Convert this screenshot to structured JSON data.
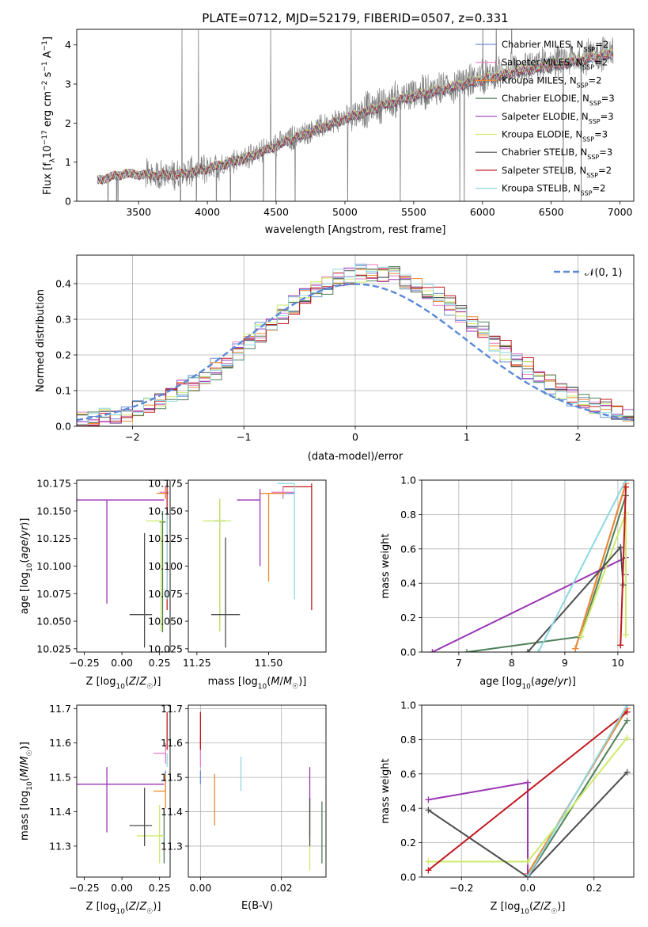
{
  "figure": {
    "title": "PLATE=0712, MJD=52179, FIBERID=0507, z=0.331"
  },
  "models": [
    {
      "name": "Chabrier MILES, N$_{SSP}$=2",
      "label": "Chabrier MILES, N",
      "sub": "SSP",
      "suffix": "=2",
      "color": "#6a8fd6"
    },
    {
      "name": "Salpeter MILES, N$_{SSP}$=2",
      "label": "Salpeter MILES, N",
      "sub": "SSP",
      "suffix": "=2",
      "color": "#e67fc2"
    },
    {
      "name": "Kroupa MILES, N$_{SSP}$=2",
      "label": "Kroupa MILES, N",
      "sub": "SSP",
      "suffix": "=2",
      "color": "#ee8a2e"
    },
    {
      "name": "Chabrier ELODIE, N$_{SSP}$=3",
      "label": "Chabrier ELODIE, N",
      "sub": "SSP",
      "suffix": "=3",
      "color": "#4f7f5a"
    },
    {
      "name": "Salpeter ELODIE, N$_{SSP}$=3",
      "label": "Salpeter ELODIE, N",
      "sub": "SSP",
      "suffix": "=3",
      "color": "#9b35b5"
    },
    {
      "name": "Kroupa ELODIE, N$_{SSP}$=3",
      "label": "Kroupa ELODIE, N",
      "sub": "SSP",
      "suffix": "=3",
      "color": "#cdea6a"
    },
    {
      "name": "Chabrier STELIB, N$_{SSP}$=3",
      "label": "Chabrier STELIB, N",
      "sub": "SSP",
      "suffix": "=3",
      "color": "#4d4d4d"
    },
    {
      "name": "Salpeter STELIB, N$_{SSP}$=2",
      "label": "Salpeter STELIB, N",
      "sub": "SSP",
      "suffix": "=2",
      "color": "#c0191f"
    },
    {
      "name": "Kroupa STELIB, N$_{SSP}$=2",
      "label": "Kroupa STELIB, N",
      "sub": "SSP",
      "suffix": "=2",
      "color": "#8dd8e0"
    }
  ],
  "chart_data": [
    {
      "id": "spectrum",
      "type": "line",
      "xlabel": "wavelength [Angstrom, rest frame]",
      "ylabel": "Flux [f$_\\lambda$10$^{-17}$ erg cm$^{-2}$ s$^{-1}$ A$^{-1}$]",
      "xlim": [
        3050,
        7100
      ],
      "ylim": [
        0,
        4.4
      ],
      "xticks": [
        3500,
        4000,
        4500,
        5000,
        5500,
        6000,
        6500,
        7000
      ],
      "yticks": [
        0,
        1,
        2,
        3,
        4
      ],
      "grid": false,
      "legend_position": "upper right",
      "data_color": "#808080",
      "continuum_x": [
        3200,
        3400,
        3600,
        3800,
        4000,
        4300,
        4600,
        5000,
        5400,
        5800,
        6200,
        6600,
        6950
      ],
      "continuum_y": [
        0.55,
        0.72,
        0.68,
        0.7,
        0.85,
        1.15,
        1.6,
        2.15,
        2.65,
        3.0,
        3.35,
        3.6,
        3.85
      ]
    },
    {
      "id": "residuals",
      "type": "step",
      "xlabel": "(data-model)/error",
      "ylabel": "Normed distribution",
      "xlim": [
        -2.5,
        2.5
      ],
      "ylim": [
        0,
        0.48
      ],
      "xticks": [
        -2,
        -1,
        0,
        1,
        2
      ],
      "yticks": [
        0,
        0.1,
        0.2,
        0.3,
        0.4
      ],
      "grid": true,
      "legend_position": "upper right",
      "normal_label": "$\\mathcal{N}(0,1)$",
      "normal_label_text": "𝒩(0, 1)",
      "normal_color": "#5a88d8",
      "bin_width": 0.1
    },
    {
      "id": "age_vs_Z",
      "type": "errorbar",
      "xlabel": "Z [log$_{10}$(Z/Z$_\\odot$)]",
      "ylabel": "age  [log$_{10}$(age/yr)]",
      "xlim": [
        -0.3,
        0.32
      ],
      "ylim": [
        10.022,
        10.178
      ],
      "xticks": [
        -0.25,
        0.0,
        0.25
      ],
      "yticks": [
        10.025,
        10.05,
        10.075,
        10.1,
        10.125,
        10.15,
        10.175
      ],
      "grid": false,
      "points": [
        {
          "series": 0,
          "x": 0.29,
          "y": 10.166,
          "xerr": [
            0.02,
            0.02
          ],
          "yerr": [
            0.005,
            0.005
          ]
        },
        {
          "series": 1,
          "x": 0.29,
          "y": 10.167,
          "xerr": [
            0.04,
            0.02
          ],
          "yerr": [
            0.005,
            0.005
          ]
        },
        {
          "series": 2,
          "x": 0.29,
          "y": 10.166,
          "xerr": [
            0.06,
            0.0
          ],
          "yerr": [
            0.005,
            0.005
          ]
        },
        {
          "series": 3,
          "x": 0.27,
          "y": 10.14,
          "xerr": [
            0.02,
            0.02
          ],
          "yerr": [
            0.1,
            0.01
          ]
        },
        {
          "series": 4,
          "x": -0.1,
          "y": 10.16,
          "xerr": [
            0.2,
            0.38
          ],
          "yerr": [
            0.094,
            0.0
          ]
        },
        {
          "series": 5,
          "x": 0.26,
          "y": 10.141,
          "xerr": [
            0.1,
            0.02
          ],
          "yerr": [
            0.1,
            0.0
          ]
        },
        {
          "series": 6,
          "x": 0.15,
          "y": 10.056,
          "xerr": [
            0.1,
            0.05
          ],
          "yerr": [
            0.03,
            0.074
          ]
        },
        {
          "series": 7,
          "x": 0.3,
          "y": 10.172,
          "xerr": [
            0.0,
            0.0
          ],
          "yerr": [
            0.112,
            0.003
          ]
        },
        {
          "series": 8,
          "x": 0.3,
          "y": 10.11,
          "xerr": [
            0.0,
            0.0
          ],
          "yerr": [
            0.04,
            0.04
          ]
        }
      ]
    },
    {
      "id": "age_vs_mass",
      "type": "errorbar",
      "xlabel": "mass [log$_{10}$(M/M$_\\odot$)]",
      "ylabel": "",
      "xlim": [
        11.22,
        11.7
      ],
      "ylim": [
        10.022,
        10.178
      ],
      "xticks": [
        11.25,
        11.5
      ],
      "yticks": [
        10.025,
        10.05,
        10.075,
        10.1,
        10.125,
        10.15,
        10.175
      ],
      "grid": false,
      "points": [
        {
          "series": 0,
          "x": 11.55,
          "y": 10.166,
          "xerr": [
            0.04,
            0.04
          ],
          "yerr": [
            0.005,
            0.005
          ]
        },
        {
          "series": 1,
          "x": 11.55,
          "y": 10.167,
          "xerr": [
            0.04,
            0.04
          ],
          "yerr": [
            0.005,
            0.005
          ]
        },
        {
          "series": 2,
          "x": 11.5,
          "y": 10.166,
          "xerr": [
            0.03,
            0.06
          ],
          "yerr": [
            0.08,
            0.0
          ]
        },
        {
          "series": 3,
          "x": 11.33,
          "y": 10.141,
          "xerr": [
            0.02,
            0.02
          ],
          "yerr": [
            0.1,
            0.02
          ]
        },
        {
          "series": 4,
          "x": 11.47,
          "y": 10.16,
          "xerr": [
            0.08,
            0.0
          ],
          "yerr": [
            0.06,
            0.01
          ]
        },
        {
          "series": 5,
          "x": 11.33,
          "y": 10.141,
          "xerr": [
            0.06,
            0.04
          ],
          "yerr": [
            0.1,
            0.02
          ]
        },
        {
          "series": 6,
          "x": 11.35,
          "y": 10.056,
          "xerr": [
            0.05,
            0.05
          ],
          "yerr": [
            0.03,
            0.07
          ]
        },
        {
          "series": 7,
          "x": 11.65,
          "y": 10.172,
          "xerr": [
            0.1,
            0.0
          ],
          "yerr": [
            0.112,
            0.003
          ]
        },
        {
          "series": 8,
          "x": 11.59,
          "y": 10.175,
          "xerr": [
            0.06,
            0.0
          ],
          "yerr": [
            0.105,
            0.0
          ]
        }
      ]
    },
    {
      "id": "massweight_vs_age",
      "type": "line",
      "xlabel": "age  [log$_{10}$(age/yr)]",
      "ylabel": "mass weight",
      "xlim": [
        6.3,
        10.3
      ],
      "ylim": [
        0,
        1.0
      ],
      "xticks": [
        7,
        8,
        9,
        10
      ],
      "yticks": [
        0.0,
        0.2,
        0.4,
        0.6,
        0.8,
        1.0
      ],
      "grid": true,
      "series": [
        {
          "series": 0,
          "x": [
            9.2,
            10.15
          ],
          "y": [
            0.02,
            0.98
          ]
        },
        {
          "series": 1,
          "x": [
            9.2,
            10.15
          ],
          "y": [
            0.02,
            0.98
          ]
        },
        {
          "series": 2,
          "x": [
            9.2,
            10.15
          ],
          "y": [
            0.02,
            0.98
          ]
        },
        {
          "series": 3,
          "x": [
            7.15,
            9.3,
            10.15
          ],
          "y": [
            0.0,
            0.09,
            0.91
          ]
        },
        {
          "series": 4,
          "x": [
            6.5,
            10.15,
            10.15
          ],
          "y": [
            0.0,
            0.55,
            0.45
          ]
        },
        {
          "series": 5,
          "x": [
            9.3,
            10.15,
            10.15
          ],
          "y": [
            0.09,
            0.81,
            0.1
          ]
        },
        {
          "series": 6,
          "x": [
            8.3,
            10.05,
            10.1
          ],
          "y": [
            0.0,
            0.61,
            0.39
          ]
        },
        {
          "series": 7,
          "x": [
            10.05,
            10.15
          ],
          "y": [
            0.04,
            0.96
          ]
        },
        {
          "series": 8,
          "x": [
            8.5,
            10.15
          ],
          "y": [
            0.0,
            1.0
          ]
        }
      ]
    },
    {
      "id": "mass_vs_Z",
      "type": "errorbar",
      "xlabel": "Z [log$_{10}$(Z/Z$_\\odot$)]",
      "ylabel": "mass [log$_{10}$(M/M$_\\odot$)]",
      "xlim": [
        -0.3,
        0.32
      ],
      "ylim": [
        11.21,
        11.71
      ],
      "xticks": [
        -0.25,
        0.0,
        0.25
      ],
      "yticks": [
        11.3,
        11.4,
        11.5,
        11.6,
        11.7
      ],
      "grid": false,
      "points": [
        {
          "series": 0,
          "x": 0.29,
          "y": 11.49,
          "xerr": [
            0.03,
            0.0
          ],
          "yerr": [
            0.03,
            0.03
          ]
        },
        {
          "series": 1,
          "x": 0.29,
          "y": 11.57,
          "xerr": [
            0.08,
            0.0
          ],
          "yerr": [
            0.03,
            0.03
          ]
        },
        {
          "series": 2,
          "x": 0.29,
          "y": 11.46,
          "xerr": [
            0.08,
            0.0
          ],
          "yerr": [
            0.05,
            0.05
          ]
        },
        {
          "series": 3,
          "x": 0.28,
          "y": 11.33,
          "xerr": [
            0.02,
            0.0
          ],
          "yerr": [
            0.08,
            0.06
          ]
        },
        {
          "series": 4,
          "x": -0.1,
          "y": 11.48,
          "xerr": [
            0.2,
            0.38
          ],
          "yerr": [
            0.14,
            0.05
          ]
        },
        {
          "series": 5,
          "x": 0.25,
          "y": 11.33,
          "xerr": [
            0.15,
            0.03
          ],
          "yerr": [
            0.08,
            0.09
          ]
        },
        {
          "series": 6,
          "x": 0.15,
          "y": 11.36,
          "xerr": [
            0.1,
            0.05
          ],
          "yerr": [
            0.06,
            0.11
          ]
        },
        {
          "series": 7,
          "x": 0.3,
          "y": 11.63,
          "xerr": [
            0.0,
            0.0
          ],
          "yerr": [
            0.05,
            0.06
          ]
        },
        {
          "series": 8,
          "x": 0.3,
          "y": 11.55,
          "xerr": [
            0.0,
            0.0
          ],
          "yerr": [
            0.02,
            0.02
          ]
        }
      ]
    },
    {
      "id": "mass_vs_ebv",
      "type": "errorbar",
      "xlabel": "E(B-V)",
      "ylabel": "",
      "xlim": [
        -0.003,
        0.031
      ],
      "ylim": [
        11.21,
        11.71
      ],
      "xticks": [
        0.0,
        0.02
      ],
      "yticks": [
        11.3,
        11.4,
        11.5,
        11.6,
        11.7
      ],
      "grid": true,
      "points": [
        {
          "series": 0,
          "x": 0.0,
          "y": 11.5,
          "xerr": [
            0,
            0
          ],
          "yerr": [
            0.02,
            0.02
          ]
        },
        {
          "series": 1,
          "x": 0.0,
          "y": 11.57,
          "xerr": [
            0,
            0
          ],
          "yerr": [
            0.04,
            0.05
          ]
        },
        {
          "series": 2,
          "x": 0.0035,
          "y": 11.44,
          "xerr": [
            0,
            0
          ],
          "yerr": [
            0.08,
            0.07
          ]
        },
        {
          "series": 3,
          "x": 0.03,
          "y": 11.34,
          "xerr": [
            0,
            0
          ],
          "yerr": [
            0.09,
            0.09
          ]
        },
        {
          "series": 4,
          "x": 0.027,
          "y": 11.43,
          "xerr": [
            0,
            0
          ],
          "yerr": [
            0.1,
            0.1
          ]
        },
        {
          "series": 5,
          "x": 0.027,
          "y": 11.32,
          "xerr": [
            0,
            0
          ],
          "yerr": [
            0.09,
            0.09
          ]
        },
        {
          "series": 6,
          "x": 0.027,
          "y": 11.37,
          "xerr": [
            0,
            0
          ],
          "yerr": [
            0.07,
            0.07
          ]
        },
        {
          "series": 7,
          "x": 0.0,
          "y": 11.63,
          "xerr": [
            0,
            0
          ],
          "yerr": [
            0.05,
            0.06
          ]
        },
        {
          "series": 8,
          "x": 0.01,
          "y": 11.51,
          "xerr": [
            0,
            0
          ],
          "yerr": [
            0.05,
            0.05
          ]
        }
      ]
    },
    {
      "id": "massweight_vs_Z",
      "type": "line",
      "xlabel": "Z [log$_{10}$(Z/Z$_\\odot$)]",
      "ylabel": "mass weight",
      "xlim": [
        -0.32,
        0.32
      ],
      "ylim": [
        0,
        1.0
      ],
      "xticks": [
        -0.2,
        0.0,
        0.2
      ],
      "yticks": [
        0.0,
        0.2,
        0.4,
        0.6,
        0.8,
        1.0
      ],
      "grid": true,
      "series": [
        {
          "series": 0,
          "x": [
            0.0,
            0.3
          ],
          "y": [
            0.02,
            0.98
          ]
        },
        {
          "series": 1,
          "x": [
            0.0,
            0.3
          ],
          "y": [
            0.02,
            0.98
          ]
        },
        {
          "series": 2,
          "x": [
            0.0,
            0.3
          ],
          "y": [
            0.02,
            0.98
          ]
        },
        {
          "series": 3,
          "x": [
            0.0,
            0.3
          ],
          "y": [
            0.0,
            0.91
          ]
        },
        {
          "series": 4,
          "x": [
            -0.3,
            0.0,
            0.0
          ],
          "y": [
            0.45,
            0.55,
            0.0
          ]
        },
        {
          "series": 5,
          "x": [
            -0.3,
            0.0,
            0.3
          ],
          "y": [
            0.09,
            0.09,
            0.81
          ]
        },
        {
          "series": 6,
          "x": [
            -0.3,
            0.0,
            0.3
          ],
          "y": [
            0.39,
            0.0,
            0.61
          ]
        },
        {
          "series": 7,
          "x": [
            -0.3,
            0.3
          ],
          "y": [
            0.04,
            0.96
          ]
        },
        {
          "series": 8,
          "x": [
            0.0,
            0.3
          ],
          "y": [
            0.0,
            1.0
          ]
        }
      ]
    }
  ]
}
